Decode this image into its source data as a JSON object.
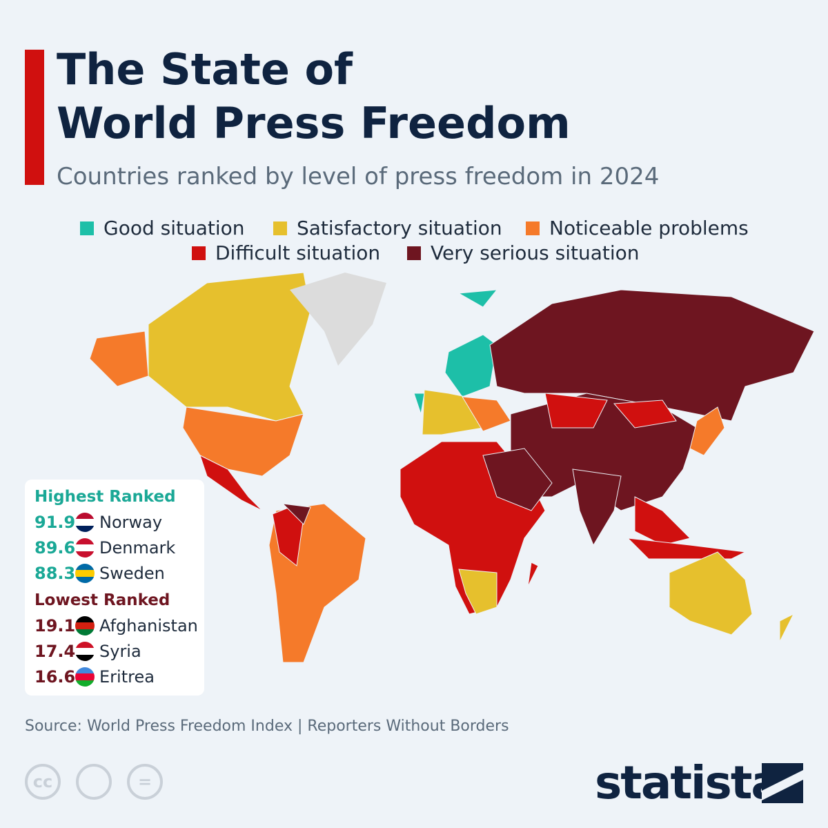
{
  "header": {
    "title": [
      "The State of",
      "World Press Freedom"
    ],
    "subtitle": "Countries ranked by level of press freedom in 2024"
  },
  "legend": [
    {
      "label": "Good situation",
      "color": "#1dbfa8"
    },
    {
      "label": "Satisfactory situation",
      "color": "#e6c02d"
    },
    {
      "label": "Noticeable problems",
      "color": "#f57a2a"
    },
    {
      "label": "Difficult situation",
      "color": "#d0100f"
    },
    {
      "label": "Very serious situation",
      "color": "#6e1520"
    }
  ],
  "ranking": {
    "highest": {
      "title": "Highest Ranked",
      "entries": [
        {
          "score": 91.9,
          "country": "Norway"
        },
        {
          "score": 89.6,
          "country": "Denmark"
        },
        {
          "score": 88.3,
          "country": "Sweden"
        }
      ]
    },
    "lowest": {
      "title": "Lowest Ranked",
      "entries": [
        {
          "score": 19.1,
          "country": "Afghanistan"
        },
        {
          "score": 17.4,
          "country": "Syria"
        },
        {
          "score": 16.6,
          "country": "Eritrea"
        }
      ]
    }
  },
  "source": "Source: World Press Freedom Index | Reporters Without Borders",
  "license_icons": [
    "cc",
    "="
  ],
  "logo": "statista"
}
